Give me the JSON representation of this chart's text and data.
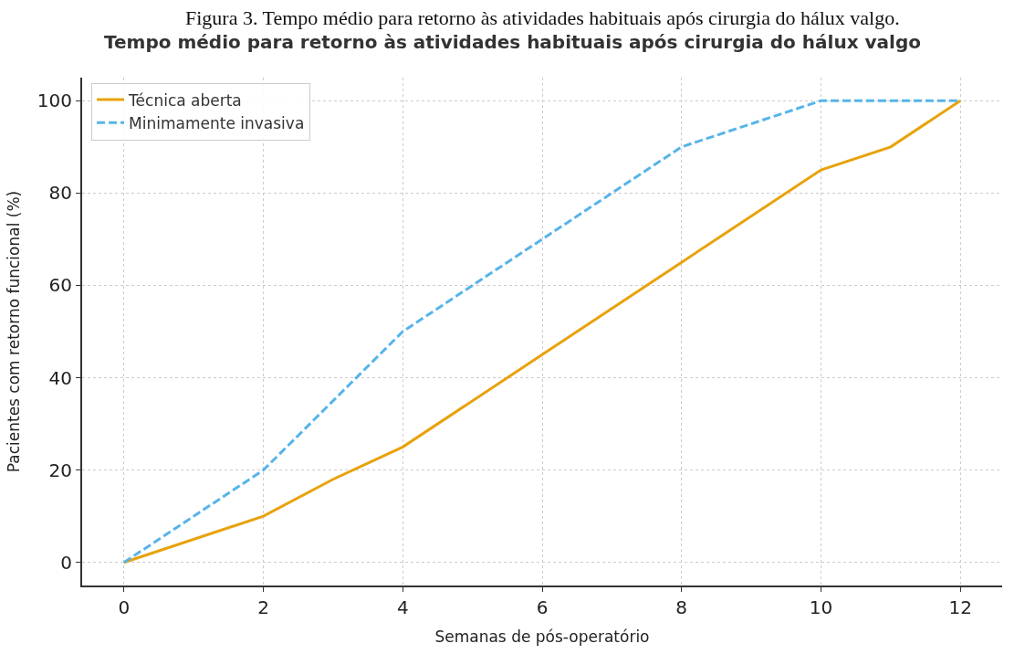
{
  "chart_data": {
    "type": "line",
    "title": "Tempo médio para retorno às atividades habituais após cirurgia do hálux valgo",
    "annotations": [
      "Figura 3. Tempo médio para retorno às atividades habituais após cirurgia do hálux valgo."
    ],
    "xlabel": "Semanas de pós-operatório",
    "ylabel": "Pacientes com retorno funcional (%)",
    "series": [
      {
        "name": "Técnica aberta",
        "color": "#e8a20c",
        "line_style": "solid",
        "x": [
          0,
          2,
          3,
          4,
          6,
          8,
          10,
          11,
          12
        ],
        "values": [
          0,
          10,
          18,
          25,
          45,
          65,
          85,
          90,
          100
        ]
      },
      {
        "name": "Minimamente invasiva",
        "color": "#56b4e9",
        "line_style": "dashed",
        "x": [
          0,
          2,
          3,
          4,
          6,
          8,
          10,
          11,
          12
        ],
        "values": [
          0,
          20,
          35,
          50,
          70,
          90,
          100,
          100,
          100
        ]
      }
    ],
    "xlim": [
      -0.6,
      12.6
    ],
    "xticks": [
      0,
      2,
      4,
      6,
      8,
      10,
      12
    ],
    "ylim": [
      -5,
      105
    ],
    "yticks": [
      0,
      20,
      40,
      60,
      80,
      100
    ],
    "grid": true,
    "legend": "top left",
    "marker": "none"
  }
}
